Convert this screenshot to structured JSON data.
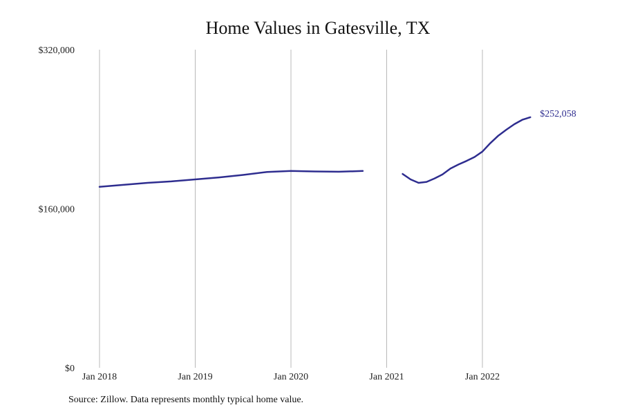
{
  "chart_data": {
    "type": "line",
    "title": "Home Values in Gatesville, TX",
    "xlabel": "",
    "ylabel": "",
    "ylim": [
      0,
      320000
    ],
    "yticks": [
      0,
      160000,
      320000
    ],
    "ytick_labels": [
      "$0",
      "$160,000",
      "$320,000"
    ],
    "xlim": [
      "2018-01",
      "2023-01"
    ],
    "xticks": [
      "2018-01",
      "2019-01",
      "2020-01",
      "2021-01",
      "2022-01"
    ],
    "xtick_labels": [
      "Jan 2018",
      "Jan 2019",
      "Jan 2020",
      "Jan 2021",
      "Jan 2022"
    ],
    "grid": "vertical",
    "line_color": "#2e2d8f",
    "series": [
      {
        "segments": [
          [
            [
              "2018-01",
              182000
            ],
            [
              "2018-04",
              184000
            ],
            [
              "2018-07",
              186000
            ],
            [
              "2018-10",
              187500
            ],
            [
              "2019-01",
              189500
            ],
            [
              "2019-04",
              191500
            ],
            [
              "2019-07",
              194000
            ],
            [
              "2019-10",
              197000
            ],
            [
              "2020-01",
              198000
            ],
            [
              "2020-04",
              197500
            ],
            [
              "2020-07",
              197200
            ],
            [
              "2020-10",
              198000
            ]
          ],
          [
            [
              "2021-03",
              195000
            ],
            [
              "2021-04",
              189500
            ],
            [
              "2021-05",
              186000
            ],
            [
              "2021-06",
              187000
            ],
            [
              "2021-07",
              190500
            ],
            [
              "2021-08",
              194500
            ],
            [
              "2021-09",
              200500
            ],
            [
              "2021-10",
              204500
            ],
            [
              "2021-11",
              208000
            ],
            [
              "2021-12",
              212000
            ],
            [
              "2022-01",
              217500
            ],
            [
              "2022-02",
              226000
            ],
            [
              "2022-03",
              233500
            ],
            [
              "2022-04",
              239500
            ],
            [
              "2022-05",
              245000
            ],
            [
              "2022-06",
              249500
            ],
            [
              "2022-07",
              252058
            ]
          ]
        ]
      }
    ],
    "end_label": "$252,058"
  },
  "footer": "Source: Zillow. Data represents monthly typical home value."
}
